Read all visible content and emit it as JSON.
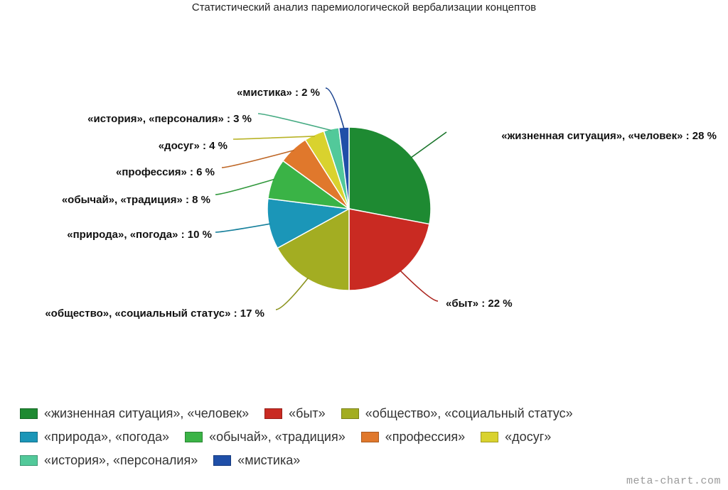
{
  "chart_data": {
    "type": "pie",
    "title": "Статистический анализ паремиологической вербализации концептов",
    "slices": [
      {
        "name": "«жизненная ситуация», «человек»",
        "value": 28,
        "label": "«жизненная ситуация», «человек» : 28 %",
        "color": "#1e8a32"
      },
      {
        "name": "«быт»",
        "value": 22,
        "label": "«быт» : 22 %",
        "color": "#c92a22"
      },
      {
        "name": "«общество», «социальный статус»",
        "value": 17,
        "label": "«общество», «социальный статус» : 17 %",
        "color": "#a3ad22"
      },
      {
        "name": "«природа», «погода»",
        "value": 10,
        "label": "«природа», «погода» : 10 %",
        "color": "#1b96b8"
      },
      {
        "name": "«обычай», «традиция»",
        "value": 8,
        "label": "«обычай», «традиция» : 8 %",
        "color": "#3ab346"
      },
      {
        "name": "«профессия»",
        "value": 6,
        "label": "«профессия» : 6 %",
        "color": "#e0782c"
      },
      {
        "name": "«досуг»",
        "value": 4,
        "label": "«досуг» : 4 %",
        "color": "#d9d22e"
      },
      {
        "name": "«история», «персоналия»",
        "value": 3,
        "label": "«история», «персоналия» : 3 %",
        "color": "#52c99a"
      },
      {
        "name": "«мистика»",
        "value": 2,
        "label": "«мистика» : 2 %",
        "color": "#1f4fa8"
      }
    ],
    "legend_position": "bottom"
  },
  "watermark": "meta-chart.com"
}
